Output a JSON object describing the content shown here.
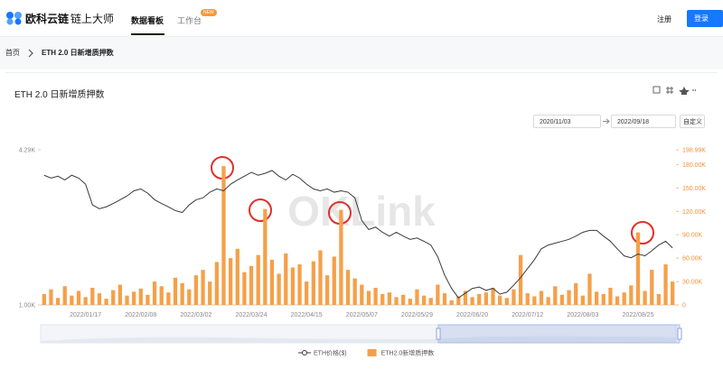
{
  "header": {
    "logo_primary": "欧科云链",
    "logo_secondary": "链上大师",
    "tabs": [
      "数据看板",
      "工作台"
    ],
    "badge": "NEW",
    "register": "注册",
    "login": "登录"
  },
  "breadcrumb": {
    "home": "首页",
    "current": "ETH 2.0 日新增质押数"
  },
  "date_range": {
    "start": "2020/11/03",
    "end": "2022/09/18",
    "custom": "自定义"
  },
  "chart_data": {
    "type": "combo",
    "title": "ETH 2.0 日新增质押数",
    "watermark": "OKLink",
    "categories": [
      null,
      null,
      null,
      null,
      null,
      null,
      "2022/01/17",
      null,
      null,
      null,
      null,
      null,
      null,
      null,
      "2022/02/08",
      null,
      null,
      null,
      null,
      null,
      null,
      null,
      "2022/03/02",
      null,
      null,
      null,
      null,
      null,
      null,
      null,
      "2022/03/24",
      null,
      null,
      null,
      null,
      null,
      null,
      null,
      "2022/04/15",
      null,
      null,
      null,
      null,
      null,
      null,
      null,
      "2022/05/07",
      null,
      null,
      null,
      null,
      null,
      null,
      null,
      "2022/05/29",
      null,
      null,
      null,
      null,
      null,
      null,
      null,
      "2022/06/20",
      null,
      null,
      null,
      null,
      null,
      null,
      null,
      "2022/07/12",
      null,
      null,
      null,
      null,
      null,
      null,
      null,
      "2022/08/03",
      null,
      null,
      null,
      null,
      null,
      null,
      null,
      "2022/08/25",
      null,
      null,
      null,
      null,
      null
    ],
    "series": [
      {
        "name": "ETH价格($)",
        "type": "line",
        "color": "#3a3a3a",
        "values": [
          3750,
          3690,
          3730,
          3650,
          3750,
          3690,
          3560,
          3120,
          3040,
          3080,
          3150,
          3230,
          3310,
          3420,
          3460,
          3370,
          3230,
          3150,
          3080,
          3000,
          2960,
          3120,
          3230,
          3270,
          3390,
          3460,
          3420,
          3560,
          3650,
          3730,
          3810,
          3750,
          3790,
          3850,
          3730,
          3650,
          3770,
          3690,
          3560,
          3460,
          3420,
          3460,
          3390,
          3420,
          3390,
          3270,
          2790,
          2600,
          2650,
          2540,
          2460,
          2540,
          2460,
          2390,
          2420,
          2350,
          2270,
          2020,
          1630,
          1350,
          1150,
          1250,
          1350,
          1380,
          1310,
          1350,
          1230,
          1270,
          1420,
          1580,
          1770,
          1960,
          2190,
          2270,
          2310,
          2350,
          2390,
          2460,
          2540,
          2580,
          2580,
          2460,
          2350,
          2190,
          2040,
          2000,
          2080,
          2040,
          2150,
          2270,
          2350,
          2210
        ]
      },
      {
        "name": "ETH2.0新增质押数",
        "type": "bar",
        "color": "#f5a04a",
        "axis": "y2",
        "values": [
          14000,
          20000,
          9000,
          24000,
          12000,
          18000,
          10000,
          22000,
          15000,
          8000,
          19000,
          26000,
          12000,
          17000,
          21000,
          13000,
          30000,
          24000,
          16000,
          35000,
          28000,
          20000,
          38000,
          45000,
          30000,
          55000,
          178000,
          60000,
          72000,
          42000,
          50000,
          64000,
          123000,
          58000,
          40000,
          66000,
          48000,
          52000,
          30000,
          56000,
          70000,
          38000,
          62000,
          122000,
          45000,
          34000,
          26000,
          18000,
          22000,
          14000,
          16000,
          10000,
          13000,
          8000,
          20000,
          12000,
          9000,
          26000,
          15000,
          6000,
          11000,
          18000,
          10000,
          14000,
          16000,
          22000,
          12000,
          9000,
          20000,
          64000,
          15000,
          11000,
          18000,
          10000,
          24000,
          13000,
          19000,
          28000,
          12000,
          40000,
          17000,
          14000,
          22000,
          11000,
          16000,
          25000,
          93000,
          18000,
          45000,
          14000,
          52000,
          30000
        ]
      }
    ],
    "ylim": [
      1000,
      4290
    ],
    "yticks": [
      {
        "value": 1000,
        "label": "1.00K"
      },
      {
        "value": 4290,
        "label": "4.29K"
      }
    ],
    "y2lim": [
      0,
      198990
    ],
    "y2ticks": [
      0,
      {
        "value": 30000,
        "label": "30.00K"
      },
      {
        "value": 60000,
        "label": "60.00K"
      },
      {
        "value": 90000,
        "label": "90.00K"
      },
      {
        "value": 120000,
        "label": "120.00K"
      },
      {
        "value": 150000,
        "label": "150.00K"
      },
      {
        "value": 180000,
        "label": "180.00K"
      },
      {
        "value": 198990,
        "label": "198.99K"
      }
    ],
    "grid": false
  }
}
